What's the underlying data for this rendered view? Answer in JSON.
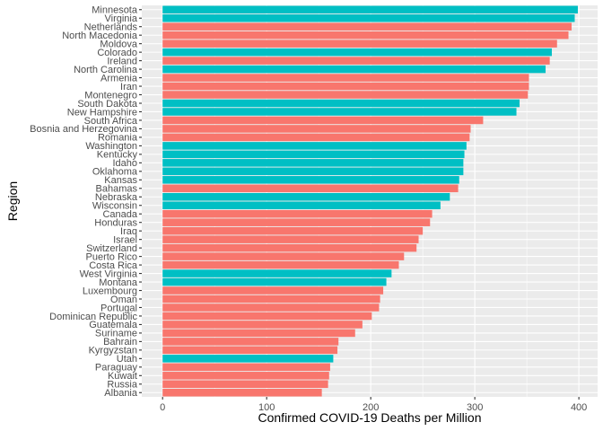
{
  "chart_data": {
    "type": "bar",
    "orientation": "horizontal",
    "xlabel": "Confirmed COVID-19 Deaths per Million",
    "ylabel": "Region",
    "xlim": [
      -20,
      418
    ],
    "xticks": [
      0,
      100,
      200,
      300,
      400
    ],
    "grid": true,
    "legend": "none",
    "colors": {
      "us_state": "#00BFC4",
      "country": "#F8766D",
      "panel": "#EBEBEB",
      "gridline": "#FFFFFF"
    },
    "bars": [
      {
        "region": "Minnesota",
        "value": 399,
        "group": "us_state"
      },
      {
        "region": "Virginia",
        "value": 396,
        "group": "us_state"
      },
      {
        "region": "Netherlands",
        "value": 393,
        "group": "country"
      },
      {
        "region": "North Macedonia",
        "value": 390,
        "group": "country"
      },
      {
        "region": "Moldova",
        "value": 379,
        "group": "country"
      },
      {
        "region": "Colorado",
        "value": 374,
        "group": "us_state"
      },
      {
        "region": "Ireland",
        "value": 372,
        "group": "country"
      },
      {
        "region": "North Carolina",
        "value": 368,
        "group": "us_state"
      },
      {
        "region": "Armenia",
        "value": 352,
        "group": "country"
      },
      {
        "region": "Iran",
        "value": 352,
        "group": "country"
      },
      {
        "region": "Montenegro",
        "value": 351,
        "group": "country"
      },
      {
        "region": "South Dakota",
        "value": 343,
        "group": "us_state"
      },
      {
        "region": "New Hampshire",
        "value": 340,
        "group": "us_state"
      },
      {
        "region": "South Africa",
        "value": 308,
        "group": "country"
      },
      {
        "region": "Bosnia and Herzegovina",
        "value": 296,
        "group": "country"
      },
      {
        "region": "Romania",
        "value": 295,
        "group": "country"
      },
      {
        "region": "Washington",
        "value": 292,
        "group": "us_state"
      },
      {
        "region": "Kentucky",
        "value": 290,
        "group": "us_state"
      },
      {
        "region": "Idaho",
        "value": 289,
        "group": "us_state"
      },
      {
        "region": "Oklahoma",
        "value": 289,
        "group": "us_state"
      },
      {
        "region": "Kansas",
        "value": 285,
        "group": "us_state"
      },
      {
        "region": "Bahamas",
        "value": 284,
        "group": "country"
      },
      {
        "region": "Nebraska",
        "value": 276,
        "group": "us_state"
      },
      {
        "region": "Wisconsin",
        "value": 267,
        "group": "us_state"
      },
      {
        "region": "Canada",
        "value": 259,
        "group": "country"
      },
      {
        "region": "Honduras",
        "value": 257,
        "group": "country"
      },
      {
        "region": "Iraq",
        "value": 250,
        "group": "country"
      },
      {
        "region": "Israel",
        "value": 246,
        "group": "country"
      },
      {
        "region": "Switzerland",
        "value": 244,
        "group": "country"
      },
      {
        "region": "Puerto Rico",
        "value": 232,
        "group": "country"
      },
      {
        "region": "Costa Rica",
        "value": 227,
        "group": "country"
      },
      {
        "region": "West Virginia",
        "value": 220,
        "group": "us_state"
      },
      {
        "region": "Montana",
        "value": 215,
        "group": "us_state"
      },
      {
        "region": "Luxembourg",
        "value": 212,
        "group": "country"
      },
      {
        "region": "Oman",
        "value": 209,
        "group": "country"
      },
      {
        "region": "Portugal",
        "value": 208,
        "group": "country"
      },
      {
        "region": "Dominican Republic",
        "value": 201,
        "group": "country"
      },
      {
        "region": "Guatemala",
        "value": 192,
        "group": "country"
      },
      {
        "region": "Suriname",
        "value": 185,
        "group": "country"
      },
      {
        "region": "Bahrain",
        "value": 169,
        "group": "country"
      },
      {
        "region": "Kyrgyzstan",
        "value": 168,
        "group": "country"
      },
      {
        "region": "Utah",
        "value": 164,
        "group": "us_state"
      },
      {
        "region": "Paraguay",
        "value": 161,
        "group": "country"
      },
      {
        "region": "Kuwait",
        "value": 160,
        "group": "country"
      },
      {
        "region": "Russia",
        "value": 159,
        "group": "country"
      },
      {
        "region": "Albania",
        "value": 153,
        "group": "country"
      }
    ]
  }
}
